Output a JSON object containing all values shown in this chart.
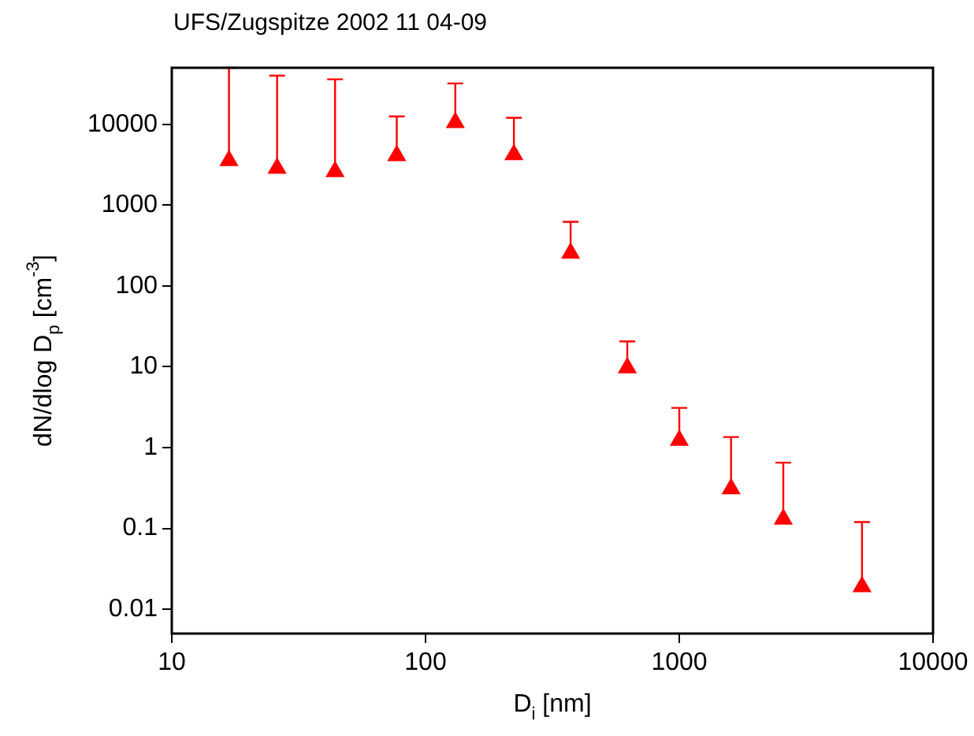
{
  "chart_data": {
    "type": "scatter",
    "title": "UFS/Zugspitze 2002 11 04-09",
    "xlabel": "D$_{i}$ [nm]",
    "ylabel": "dN/dlog D$_{p}$ [cm$^{-3}$]",
    "x": [
      16.8,
      26,
      44,
      77,
      131,
      223,
      373,
      624,
      1000,
      1600,
      2570,
      5250
    ],
    "series": [
      {
        "color": "#ff0000",
        "values": [
          3550,
          2850,
          2600,
          4100,
          10500,
          4200,
          254,
          9.7,
          1.23,
          0.31,
          0.13,
          0.019
        ],
        "errors": [
          [
            3550,
            50000
          ],
          [
            2850,
            40000
          ],
          [
            2600,
            36000
          ],
          [
            4100,
            12500
          ],
          [
            10500,
            32000
          ],
          [
            4200,
            12000
          ],
          [
            254,
            620
          ],
          [
            9.7,
            20.6
          ],
          [
            1.23,
            3.1
          ],
          [
            0.31,
            1.35
          ],
          [
            0.13,
            0.65
          ],
          [
            0.019,
            0.12
          ]
        ]
      }
    ],
    "log": "xy",
    "xlim": [
      10,
      10000
    ],
    "xticks": [
      10,
      100,
      1000,
      10000
    ],
    "ylim": [
      0.005,
      50000
    ],
    "yticks": [
      0.01,
      0.1,
      1,
      10,
      100,
      1000,
      10000
    ],
    "grid": false,
    "legend": false,
    "marker": "triangle"
  }
}
